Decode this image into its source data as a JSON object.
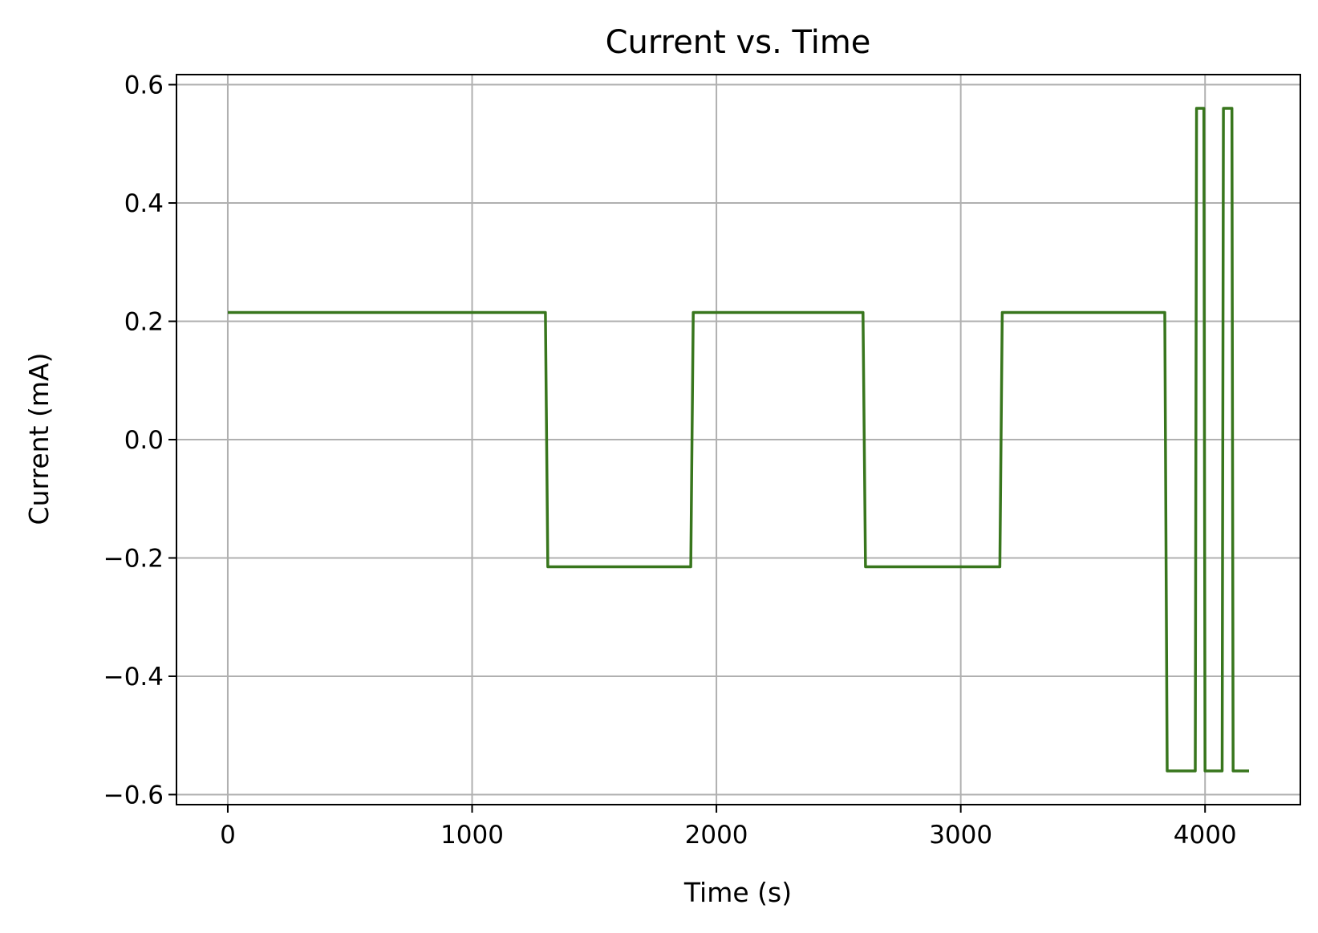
{
  "chart_data": {
    "type": "line",
    "title": "Current vs. Time",
    "xlabel": "Time (s)",
    "ylabel": "Current (mA)",
    "xlim": [
      -210,
      4390
    ],
    "ylim": [
      -0.617,
      0.617
    ],
    "grid": true,
    "x_ticks": [
      0,
      1000,
      2000,
      3000,
      4000
    ],
    "x_tick_labels": [
      "0",
      "1000",
      "2000",
      "3000",
      "4000"
    ],
    "y_ticks": [
      0.6,
      0.4,
      0.2,
      0.0,
      -0.2,
      -0.4,
      -0.6
    ],
    "y_tick_labels": [
      "0.6",
      "0.4",
      "0.2",
      "0.0",
      "−0.2",
      "−0.4",
      "−0.6"
    ],
    "colors": {
      "line": "#38761d",
      "grid": "#b0b0b0",
      "axes": "#000000"
    },
    "series": [
      {
        "x": [
          0,
          1300,
          1310,
          1895,
          1905,
          2600,
          2610,
          3160,
          3170,
          3835,
          3845,
          3960,
          3965,
          3995,
          4000,
          4070,
          4075,
          4110,
          4115,
          4180
        ],
        "y": [
          0.215,
          0.215,
          -0.215,
          -0.215,
          0.215,
          0.215,
          -0.215,
          -0.215,
          0.215,
          0.215,
          -0.56,
          -0.56,
          0.56,
          0.56,
          -0.56,
          -0.56,
          0.56,
          0.56,
          -0.56,
          -0.56
        ]
      }
    ]
  }
}
